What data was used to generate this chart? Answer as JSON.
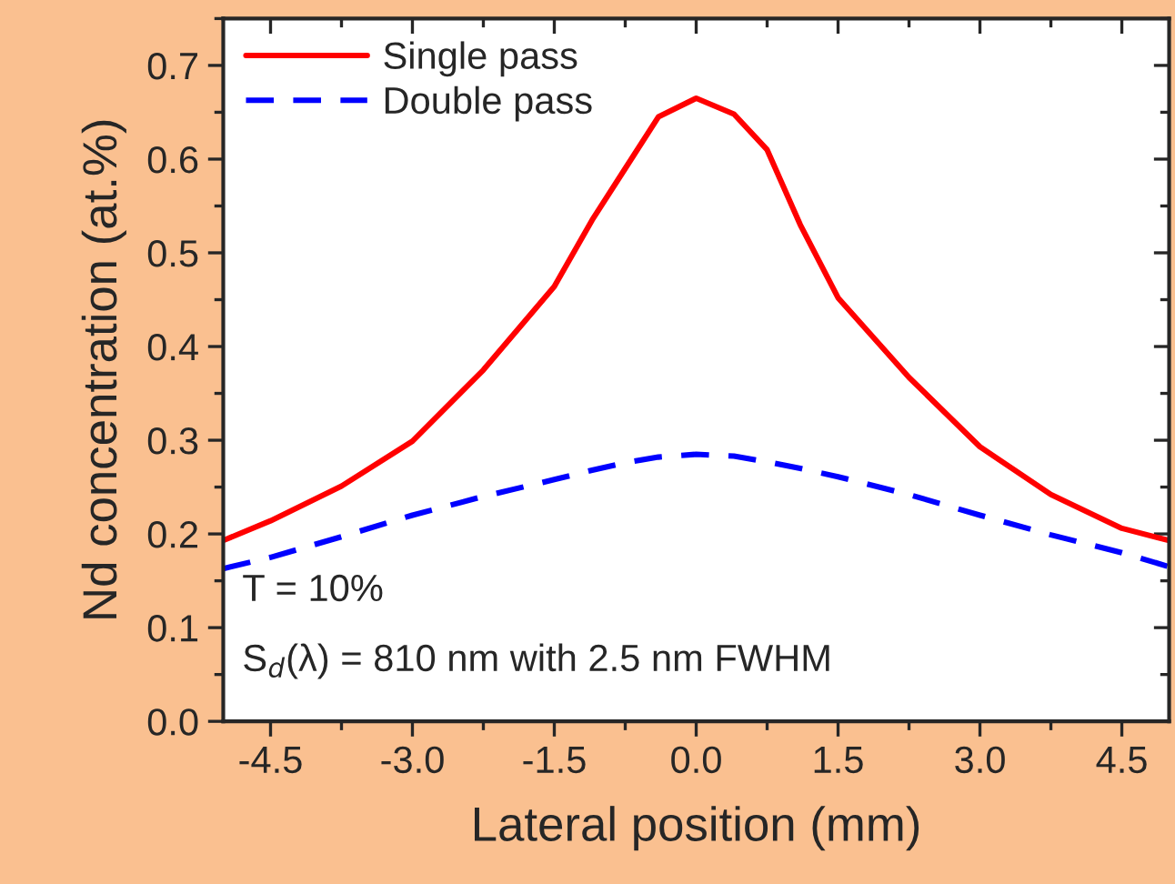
{
  "chart_data": {
    "type": "line",
    "xlabel": "Lateral position (mm)",
    "ylabel": "Nd concentration (at.%)",
    "x": [
      -5,
      -4.5,
      -3.75,
      -3,
      -2.25,
      -1.5,
      -1.1,
      -0.75,
      -0.4,
      0,
      0.4,
      0.75,
      1.1,
      1.5,
      2.25,
      3,
      3.75,
      4.5,
      5
    ],
    "series": [
      {
        "name": "Single pass",
        "color": "#ff0000",
        "line_style": "solid",
        "values": [
          0.193,
          0.214,
          0.251,
          0.299,
          0.375,
          0.464,
          0.535,
          0.59,
          0.645,
          0.665,
          0.648,
          0.61,
          0.53,
          0.452,
          0.367,
          0.293,
          0.242,
          0.206,
          0.193
        ]
      },
      {
        "name": "Double pass",
        "color": "#0000ff",
        "line_style": "dashed",
        "values": [
          0.163,
          0.175,
          0.197,
          0.22,
          0.24,
          0.258,
          0.268,
          0.276,
          0.282,
          0.285,
          0.283,
          0.277,
          0.27,
          0.261,
          0.242,
          0.22,
          0.199,
          0.18,
          0.165
        ]
      }
    ],
    "xlim": [
      -5,
      5
    ],
    "ylim": [
      0,
      0.75
    ],
    "xticks": [
      {
        "value": -4.5,
        "label": "-4.5"
      },
      {
        "value": -3.0,
        "label": "-3.0"
      },
      {
        "value": -1.5,
        "label": "-1.5"
      },
      {
        "value": 0,
        "label": "0.0"
      },
      {
        "value": 1.5,
        "label": "1.5"
      },
      {
        "value": 3.0,
        "label": "3.0"
      },
      {
        "value": 4.5,
        "label": "4.5"
      }
    ],
    "yticks": [
      {
        "value": 0,
        "label": "0.0"
      },
      {
        "value": 0.1,
        "label": "0.1"
      },
      {
        "value": 0.2,
        "label": "0.2"
      },
      {
        "value": 0.3,
        "label": "0.3"
      },
      {
        "value": 0.4,
        "label": "0.4"
      },
      {
        "value": 0.5,
        "label": "0.5"
      },
      {
        "value": 0.6,
        "label": "0.6"
      },
      {
        "value": 0.7,
        "label": "0.7"
      }
    ],
    "annotations": [
      "T = 10%",
      "S$_{d}$(λ) = 810 nm with 2.5 nm FWHM"
    ],
    "legend": "top left",
    "grid": false,
    "marker": "none"
  }
}
